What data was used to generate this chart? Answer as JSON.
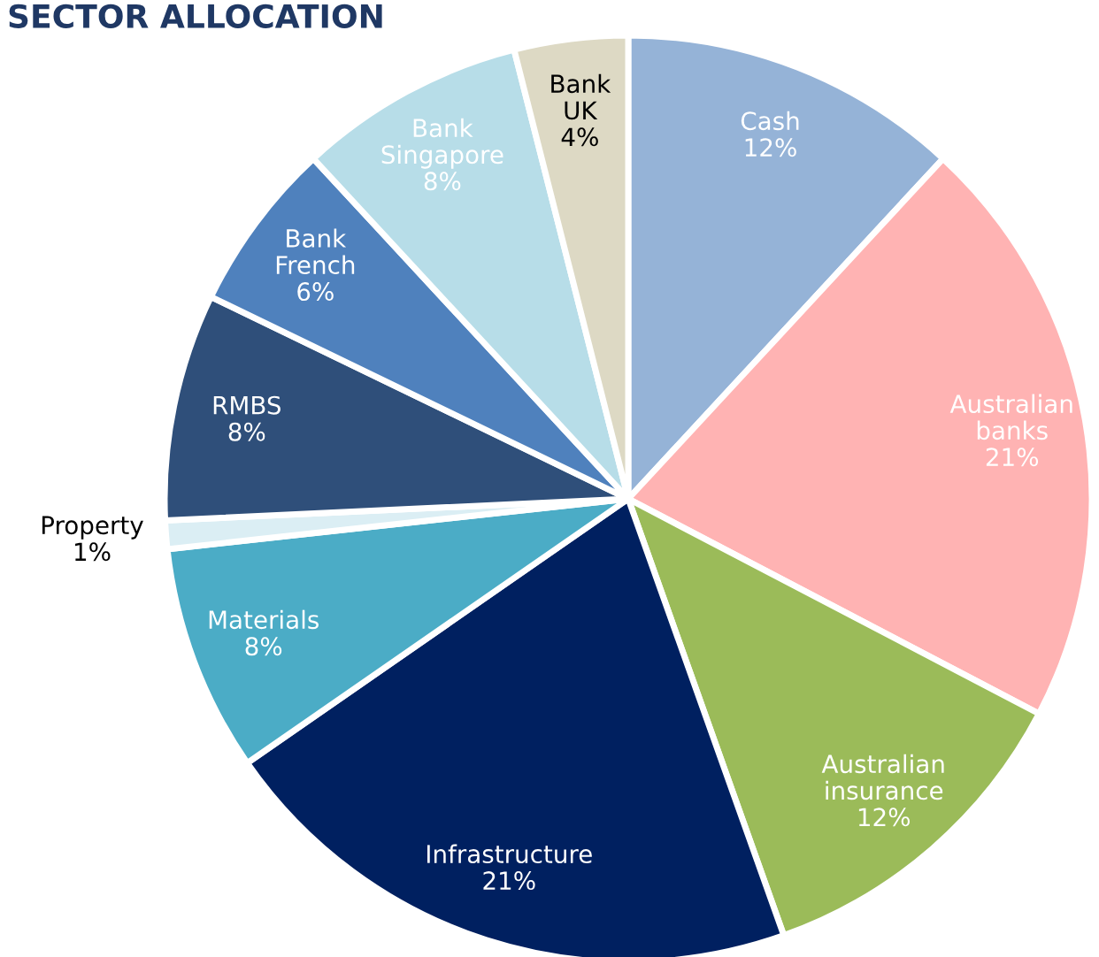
{
  "chart_data": {
    "type": "pie",
    "title": "SECTOR ALLOCATION",
    "categories": [
      "Cash",
      "Australian banks",
      "Australian insurance",
      "Infrastructure",
      "Materials",
      "Property",
      "RMBS",
      "Bank French",
      "Bank Singapore",
      "Bank UK"
    ],
    "values": [
      12,
      21,
      12,
      21,
      8,
      1,
      8,
      6,
      8,
      4
    ],
    "colors": [
      "#95b3d7",
      "#ffb3b3",
      "#9bbb59",
      "#002060",
      "#4bacc6",
      "#dbeef4",
      "#2f4f7a",
      "#4f81bd",
      "#b7dde8",
      "#ddd9c4"
    ],
    "value_labels": [
      "12%",
      "21%",
      "12%",
      "21%",
      "8%",
      "1%",
      "8%",
      "6%",
      "8%",
      "4%"
    ]
  }
}
